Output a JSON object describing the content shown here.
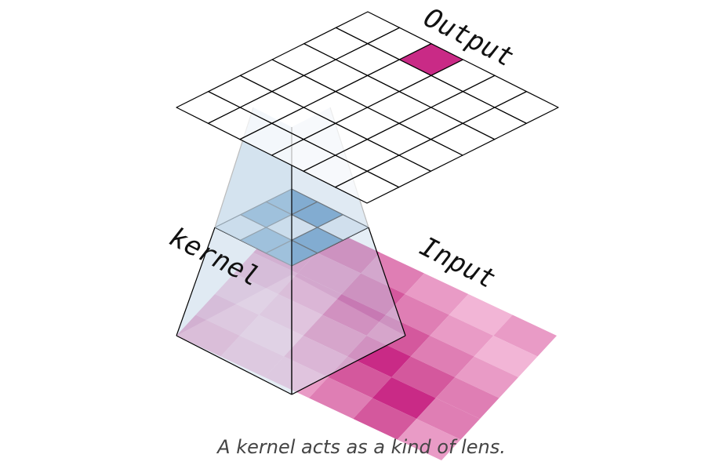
{
  "labels": {
    "output": "Output",
    "kernel": "kernel",
    "input": "Input"
  },
  "caption": "A kernel acts as a kind of lens.",
  "colors": {
    "input_shades": [
      "#f2b5d6",
      "#e99bc6",
      "#df7eb4",
      "#d4589d",
      "#c92a86"
    ],
    "kernel_blue": "#2f77b4",
    "kernel_light": "#dbe6f1",
    "highlight_output": "#c92a86",
    "lens_fill": "#c6d9ea",
    "grid_line": "#000000"
  },
  "input_grid": {
    "size": 6,
    "cells": [
      [
        1,
        3,
        2,
        1,
        0,
        1
      ],
      [
        2,
        2,
        3,
        2,
        1,
        0
      ],
      [
        1,
        2,
        4,
        3,
        2,
        1
      ],
      [
        0,
        1,
        3,
        4,
        3,
        2
      ],
      [
        1,
        0,
        2,
        3,
        4,
        2
      ],
      [
        2,
        1,
        1,
        2,
        3,
        1
      ]
    ]
  },
  "kernel_grid": {
    "size": 3,
    "cells": [
      [
        1,
        1,
        0
      ],
      [
        1,
        0,
        1
      ],
      [
        0,
        1,
        1
      ]
    ]
  },
  "output_grid": {
    "size": 6,
    "highlight": [
      0,
      2
    ]
  }
}
